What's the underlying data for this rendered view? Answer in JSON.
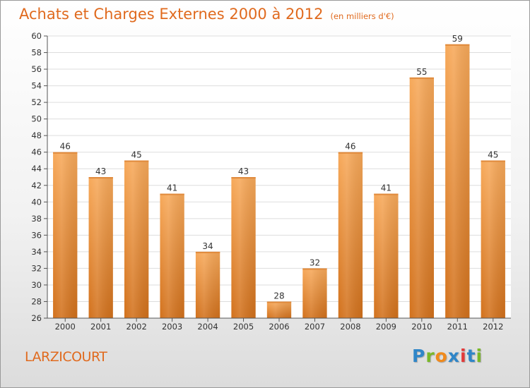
{
  "header": {
    "title": "Achats et Charges Externes 2000 à 2012",
    "subtitle": "(en milliers d'€)"
  },
  "footer": {
    "commune": "LARZICOURT",
    "brand": {
      "text": "Proxiti",
      "letter_colors": [
        "#2f86c8",
        "#7ab829",
        "#f08a1c",
        "#2f86c8",
        "#e23a3a",
        "#2f86c8",
        "#7ab829"
      ]
    }
  },
  "colors": {
    "accent": "#e06a1e",
    "bar_top": "#f7a95a",
    "bar_bottom": "#d2711c",
    "grid": "#dddddd",
    "axis": "#555555",
    "text": "#333333"
  },
  "chart_data": {
    "type": "bar",
    "title": "Achats et Charges Externes 2000 à 2012",
    "subtitle": "(en milliers d'€)",
    "xlabel": "",
    "ylabel": "",
    "categories": [
      "2000",
      "2001",
      "2002",
      "2003",
      "2004",
      "2005",
      "2006",
      "2007",
      "2008",
      "2009",
      "2010",
      "2011",
      "2012"
    ],
    "values": [
      46,
      43,
      45,
      41,
      34,
      43,
      28,
      32,
      46,
      41,
      55,
      59,
      45
    ],
    "ylim": [
      26,
      60
    ],
    "yticks": [
      26,
      28,
      30,
      32,
      34,
      36,
      38,
      40,
      42,
      44,
      46,
      48,
      50,
      52,
      54,
      56,
      58,
      60
    ],
    "grid": true,
    "data_labels": true,
    "legend": "none"
  }
}
